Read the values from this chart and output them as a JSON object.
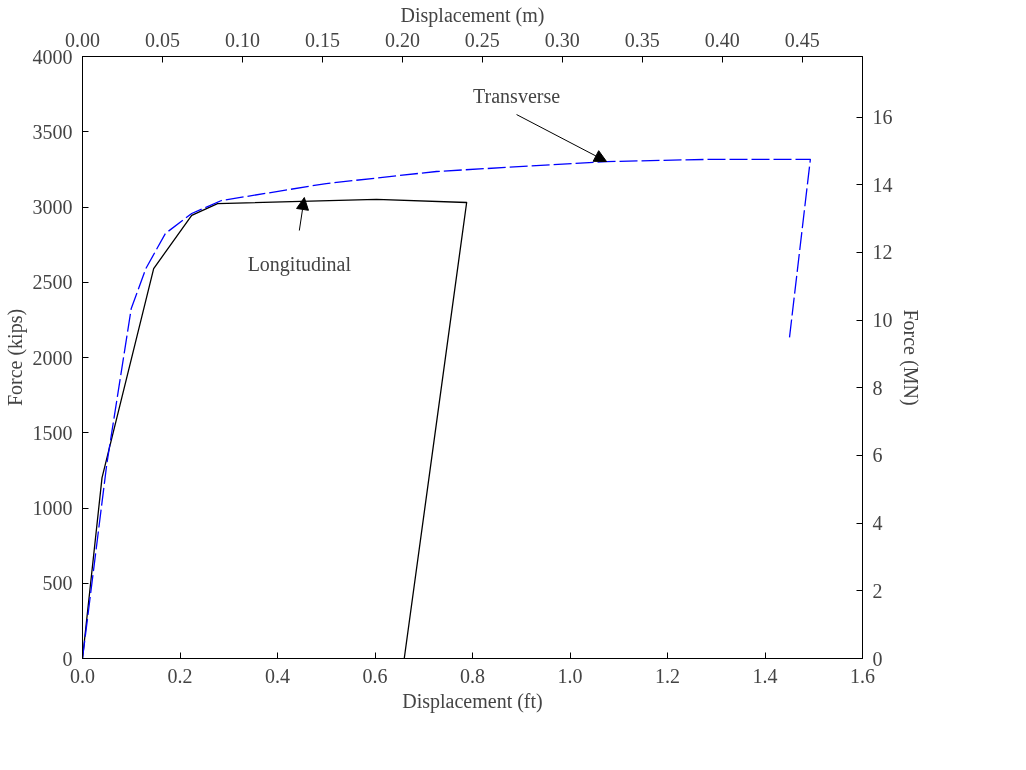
{
  "chart_data": {
    "type": "line",
    "xlabel": "Displacement (ft)",
    "ylabel": "Force (kips)",
    "x2label": "Displacement (m)",
    "y2label": "Force (MN)",
    "xlim": [
      0,
      1.6
    ],
    "ylim": [
      0,
      4000
    ],
    "x2lim": [
      0,
      0.48768
    ],
    "y2lim": [
      0,
      17.793
    ],
    "xticks": [
      {
        "value": 0,
        "label": "0.0"
      },
      {
        "value": 0.2,
        "label": "0.2"
      },
      {
        "value": 0.4,
        "label": "0.4"
      },
      {
        "value": 0.6,
        "label": "0.6"
      },
      {
        "value": 0.8,
        "label": "0.8"
      },
      {
        "value": 1.0,
        "label": "1.0"
      },
      {
        "value": 1.2,
        "label": "1.2"
      },
      {
        "value": 1.4,
        "label": "1.4"
      },
      {
        "value": 1.6,
        "label": "1.6"
      }
    ],
    "yticks": [
      0,
      500,
      1000,
      1500,
      2000,
      2500,
      3000,
      3500,
      4000
    ],
    "x2ticks": [
      {
        "value": 0,
        "label": "0.00"
      },
      {
        "value": 0.05,
        "label": "0.05"
      },
      {
        "value": 0.1,
        "label": "0.10"
      },
      {
        "value": 0.15,
        "label": "0.15"
      },
      {
        "value": 0.2,
        "label": "0.20"
      },
      {
        "value": 0.25,
        "label": "0.25"
      },
      {
        "value": 0.3,
        "label": "0.30"
      },
      {
        "value": 0.35,
        "label": "0.35"
      },
      {
        "value": 0.4,
        "label": "0.40"
      },
      {
        "value": 0.45,
        "label": "0.45"
      }
    ],
    "y2ticks": [
      0,
      2,
      4,
      6,
      8,
      10,
      12,
      14,
      16
    ],
    "marker": "none",
    "series": [
      {
        "color": "#000000",
        "line_style": "solid",
        "x": [
          0,
          0.04,
          0.146,
          0.224,
          0.277,
          0.603,
          0.788,
          0.66
        ],
        "values": [
          0,
          1200,
          2591,
          2944,
          3023,
          3050,
          3030,
          0
        ]
      },
      {
        "color": "#0000ff",
        "line_style": "dashed",
        "x": [
          0,
          0.05,
          0.1,
          0.13,
          0.17,
          0.224,
          0.285,
          0.5,
          0.726,
          1.075,
          1.28,
          1.493,
          1.45
        ],
        "values": [
          0,
          1296,
          2326,
          2591,
          2824,
          2957,
          3043,
          3156,
          3236,
          3302,
          3316,
          3316,
          2126
        ]
      }
    ],
    "annotations": [
      {
        "text": "Transverse",
        "x": 1.075,
        "y": 3302
      },
      {
        "text": "Longitudinal",
        "x": 0.455,
        "y": 3063
      }
    ]
  }
}
